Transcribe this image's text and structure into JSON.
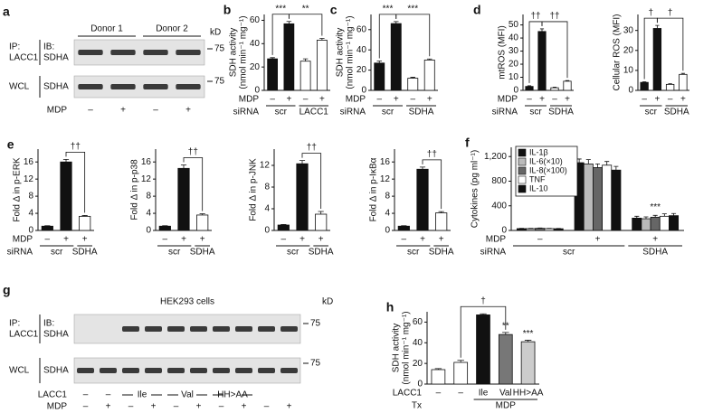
{
  "blots": [
    {
      "panel": "a",
      "header": [
        "Donor 1",
        "Donor 2"
      ],
      "unit": "kD",
      "ip_label": [
        "IP:",
        "LACC1"
      ],
      "ib_label": [
        "IB:",
        "SDHA"
      ],
      "wcl_label": [
        "WCL",
        "SDHA"
      ],
      "markers": [
        75,
        75
      ],
      "rows": [
        {
          "name": "MDP",
          "labels": [
            "–",
            "+",
            "–",
            "+"
          ]
        }
      ]
    },
    {
      "panel": "g",
      "title": "HEK293 cells",
      "unit": "kD",
      "ip_label": [
        "IP:",
        "LACC1"
      ],
      "ib_label": [
        "IB:",
        "SDHA"
      ],
      "wcl_label": [
        "WCL",
        "SDHA"
      ],
      "markers": [
        75,
        75
      ],
      "rows": [
        {
          "name": "LACC1",
          "labels": [
            "–",
            "–",
            "Ile",
            "Val",
            "HH>AA"
          ]
        },
        {
          "name": "MDP",
          "labels": [
            "–",
            "+",
            "–",
            "+",
            "–",
            "+",
            "–",
            "+",
            "–",
            "+"
          ]
        }
      ]
    }
  ],
  "chart_data": [
    {
      "type": "bar",
      "panel": "b",
      "ylabel": [
        "SDH activity",
        "(nmol min⁻¹ mg⁻¹)"
      ],
      "ylim": [
        0,
        65
      ],
      "yticks": [
        0,
        20,
        40,
        60
      ],
      "values": [
        27,
        57,
        25,
        43
      ],
      "errors": [
        1,
        2,
        2,
        1.5
      ],
      "colors": [
        "#111111",
        "#111111",
        "#ffffff",
        "#ffffff"
      ],
      "significance": [
        "***",
        "**"
      ],
      "rows": [
        {
          "name": "MDP",
          "labels": [
            "–",
            "+",
            "–",
            "+"
          ]
        },
        {
          "name": "siRNA",
          "labels": [
            "scr",
            "LACC1"
          ]
        }
      ]
    },
    {
      "type": "bar",
      "panel": "c",
      "ylabel": [
        "SDH activity",
        "(nmol min⁻¹ mg⁻¹)"
      ],
      "ylim": [
        0,
        75
      ],
      "yticks": [
        0,
        20,
        40,
        60
      ],
      "values": [
        27,
        66,
        12,
        30
      ],
      "errors": [
        2,
        2,
        1,
        1
      ],
      "colors": [
        "#111111",
        "#111111",
        "#ffffff",
        "#ffffff"
      ],
      "significance": [
        "***",
        "***"
      ],
      "rows": [
        {
          "name": "MDP",
          "labels": [
            "–",
            "+",
            "–",
            "+"
          ]
        },
        {
          "name": "siRNA",
          "labels": [
            "scr",
            "SDHA"
          ]
        }
      ]
    },
    {
      "type": "bar",
      "panel": "d",
      "ylabel": [
        "mtROS (MFI)"
      ],
      "ylim": [
        0,
        58
      ],
      "yticks": [
        0,
        10,
        20,
        30,
        40,
        50
      ],
      "values": [
        3,
        45,
        2,
        7
      ],
      "errors": [
        0.5,
        2,
        0.5,
        0.5
      ],
      "colors": [
        "#111111",
        "#111111",
        "#ffffff",
        "#ffffff"
      ],
      "significance": [
        "††",
        "††"
      ],
      "rows": [
        {
          "name": "MDP",
          "labels": [
            "–",
            "+",
            "–",
            "+"
          ]
        },
        {
          "name": "siRNA",
          "labels": [
            "scr",
            "SDHA"
          ]
        }
      ]
    },
    {
      "type": "bar",
      "ylabel": [
        "Cellular ROS (MFI)"
      ],
      "ylim": [
        0,
        38
      ],
      "yticks": [
        0,
        10,
        20,
        30
      ],
      "values": [
        4,
        31,
        3,
        8
      ],
      "errors": [
        0.3,
        1.5,
        0.3,
        0.5
      ],
      "colors": [
        "#111111",
        "#111111",
        "#ffffff",
        "#ffffff"
      ],
      "significance": [
        "†",
        "†"
      ],
      "rows": [
        {
          "labels": [
            "–",
            "+",
            "–",
            "+"
          ]
        },
        {
          "labels": [
            "scr",
            "SDHA"
          ]
        }
      ]
    },
    {
      "type": "bar",
      "panel": "e",
      "ylabel": [
        "Fold Δ in p-ERK"
      ],
      "ylim": [
        0,
        19
      ],
      "yticks": [
        0,
        4,
        8,
        12,
        16
      ],
      "values": [
        1,
        16,
        3.3
      ],
      "errors": [
        0.1,
        0.6,
        0.2
      ],
      "colors": [
        "#111111",
        "#111111",
        "#ffffff"
      ],
      "significance": [
        "††"
      ],
      "rows": [
        {
          "name": "MDP",
          "labels": [
            "–",
            "+",
            "+"
          ]
        },
        {
          "name": "siRNA",
          "labels": [
            "scr",
            "SDHA"
          ]
        }
      ]
    },
    {
      "type": "bar",
      "ylabel": [
        "Fold Δ in p-p38"
      ],
      "ylim": [
        0,
        19
      ],
      "yticks": [
        0,
        4,
        8,
        12,
        16
      ],
      "values": [
        1,
        14.5,
        3.6
      ],
      "errors": [
        0.1,
        0.8,
        0.3
      ],
      "colors": [
        "#111111",
        "#111111",
        "#ffffff"
      ],
      "significance": [
        "††"
      ],
      "rows": [
        {
          "labels": [
            "–",
            "+",
            "+"
          ]
        },
        {
          "labels": [
            "scr",
            "SDHA"
          ]
        }
      ]
    },
    {
      "type": "bar",
      "ylabel": [
        "Fold Δ in p-JNK"
      ],
      "ylim": [
        0,
        15
      ],
      "yticks": [
        0,
        4,
        8,
        12
      ],
      "values": [
        1,
        12.3,
        3
      ],
      "errors": [
        0.1,
        0.6,
        0.5
      ],
      "colors": [
        "#111111",
        "#111111",
        "#ffffff"
      ],
      "significance": [
        "††"
      ],
      "rows": [
        {
          "labels": [
            "–",
            "+",
            "+"
          ]
        },
        {
          "labels": [
            "scr",
            "SDHA"
          ]
        }
      ]
    },
    {
      "type": "bar",
      "ylabel": [
        "Fold Δ in p-IκBα"
      ],
      "ylim": [
        0,
        19
      ],
      "yticks": [
        0,
        4,
        8,
        12,
        16
      ],
      "values": [
        1,
        14.3,
        4.1
      ],
      "errors": [
        0.1,
        0.5,
        0.3
      ],
      "colors": [
        "#111111",
        "#111111",
        "#ffffff"
      ],
      "significance": [
        "††"
      ],
      "rows": [
        {
          "labels": [
            "–",
            "+",
            "+"
          ]
        },
        {
          "labels": [
            "scr",
            "SDHA"
          ]
        }
      ]
    },
    {
      "type": "grouped-bar",
      "panel": "f",
      "ylabel": [
        "Cytokines (pg ml⁻¹)"
      ],
      "ylim": [
        0,
        1350
      ],
      "yticks": [
        0,
        400,
        800,
        {
          "value": 1200,
          "label": "1,200"
        }
      ],
      "series": [
        {
          "name": "IL-1β",
          "color": "#111111",
          "values": [
            30,
            1100,
            200
          ],
          "errors": [
            5,
            60,
            30
          ]
        },
        {
          "name": "IL-6(×10)",
          "color": "#bbbbbb",
          "values": [
            30,
            1080,
            190
          ],
          "errors": [
            5,
            70,
            30
          ]
        },
        {
          "name": "IL-8(×100)",
          "color": "#666666",
          "values": [
            35,
            1020,
            215
          ],
          "errors": [
            5,
            60,
            30
          ]
        },
        {
          "name": "TNF",
          "color": "#ffffff",
          "values": [
            30,
            1060,
            230
          ],
          "errors": [
            5,
            60,
            40
          ]
        },
        {
          "name": "IL-10",
          "color": "#111111",
          "values": [
            28,
            980,
            240
          ],
          "errors": [
            5,
            60,
            35
          ]
        }
      ],
      "significance": [
        "***"
      ],
      "rows": [
        {
          "name": "MDP",
          "labels": [
            "–",
            "+",
            "+"
          ]
        },
        {
          "name": "siRNA",
          "labels": [
            "scr",
            "SDHA"
          ]
        }
      ]
    },
    {
      "type": "bar",
      "panel": "h",
      "ylabel": [
        "SDH activity",
        "(nmol min⁻¹ mg⁻¹)"
      ],
      "ylim": [
        0,
        70
      ],
      "yticks": [
        0,
        20,
        40,
        60
      ],
      "values": [
        14,
        21,
        67,
        48,
        41
      ],
      "errors": [
        1,
        2,
        1,
        2,
        1.5
      ],
      "colors": [
        "#ffffff",
        "#ffffff",
        "#111111",
        "#777777",
        "#cccccc"
      ],
      "significance": [
        "†",
        "**",
        "***"
      ],
      "rows": [
        {
          "name": "LACC1",
          "labels": [
            "–",
            "–",
            "Ile",
            "Val",
            "HH>AA"
          ]
        },
        {
          "name": "Tx",
          "labels": [
            "MDP"
          ]
        }
      ]
    }
  ]
}
